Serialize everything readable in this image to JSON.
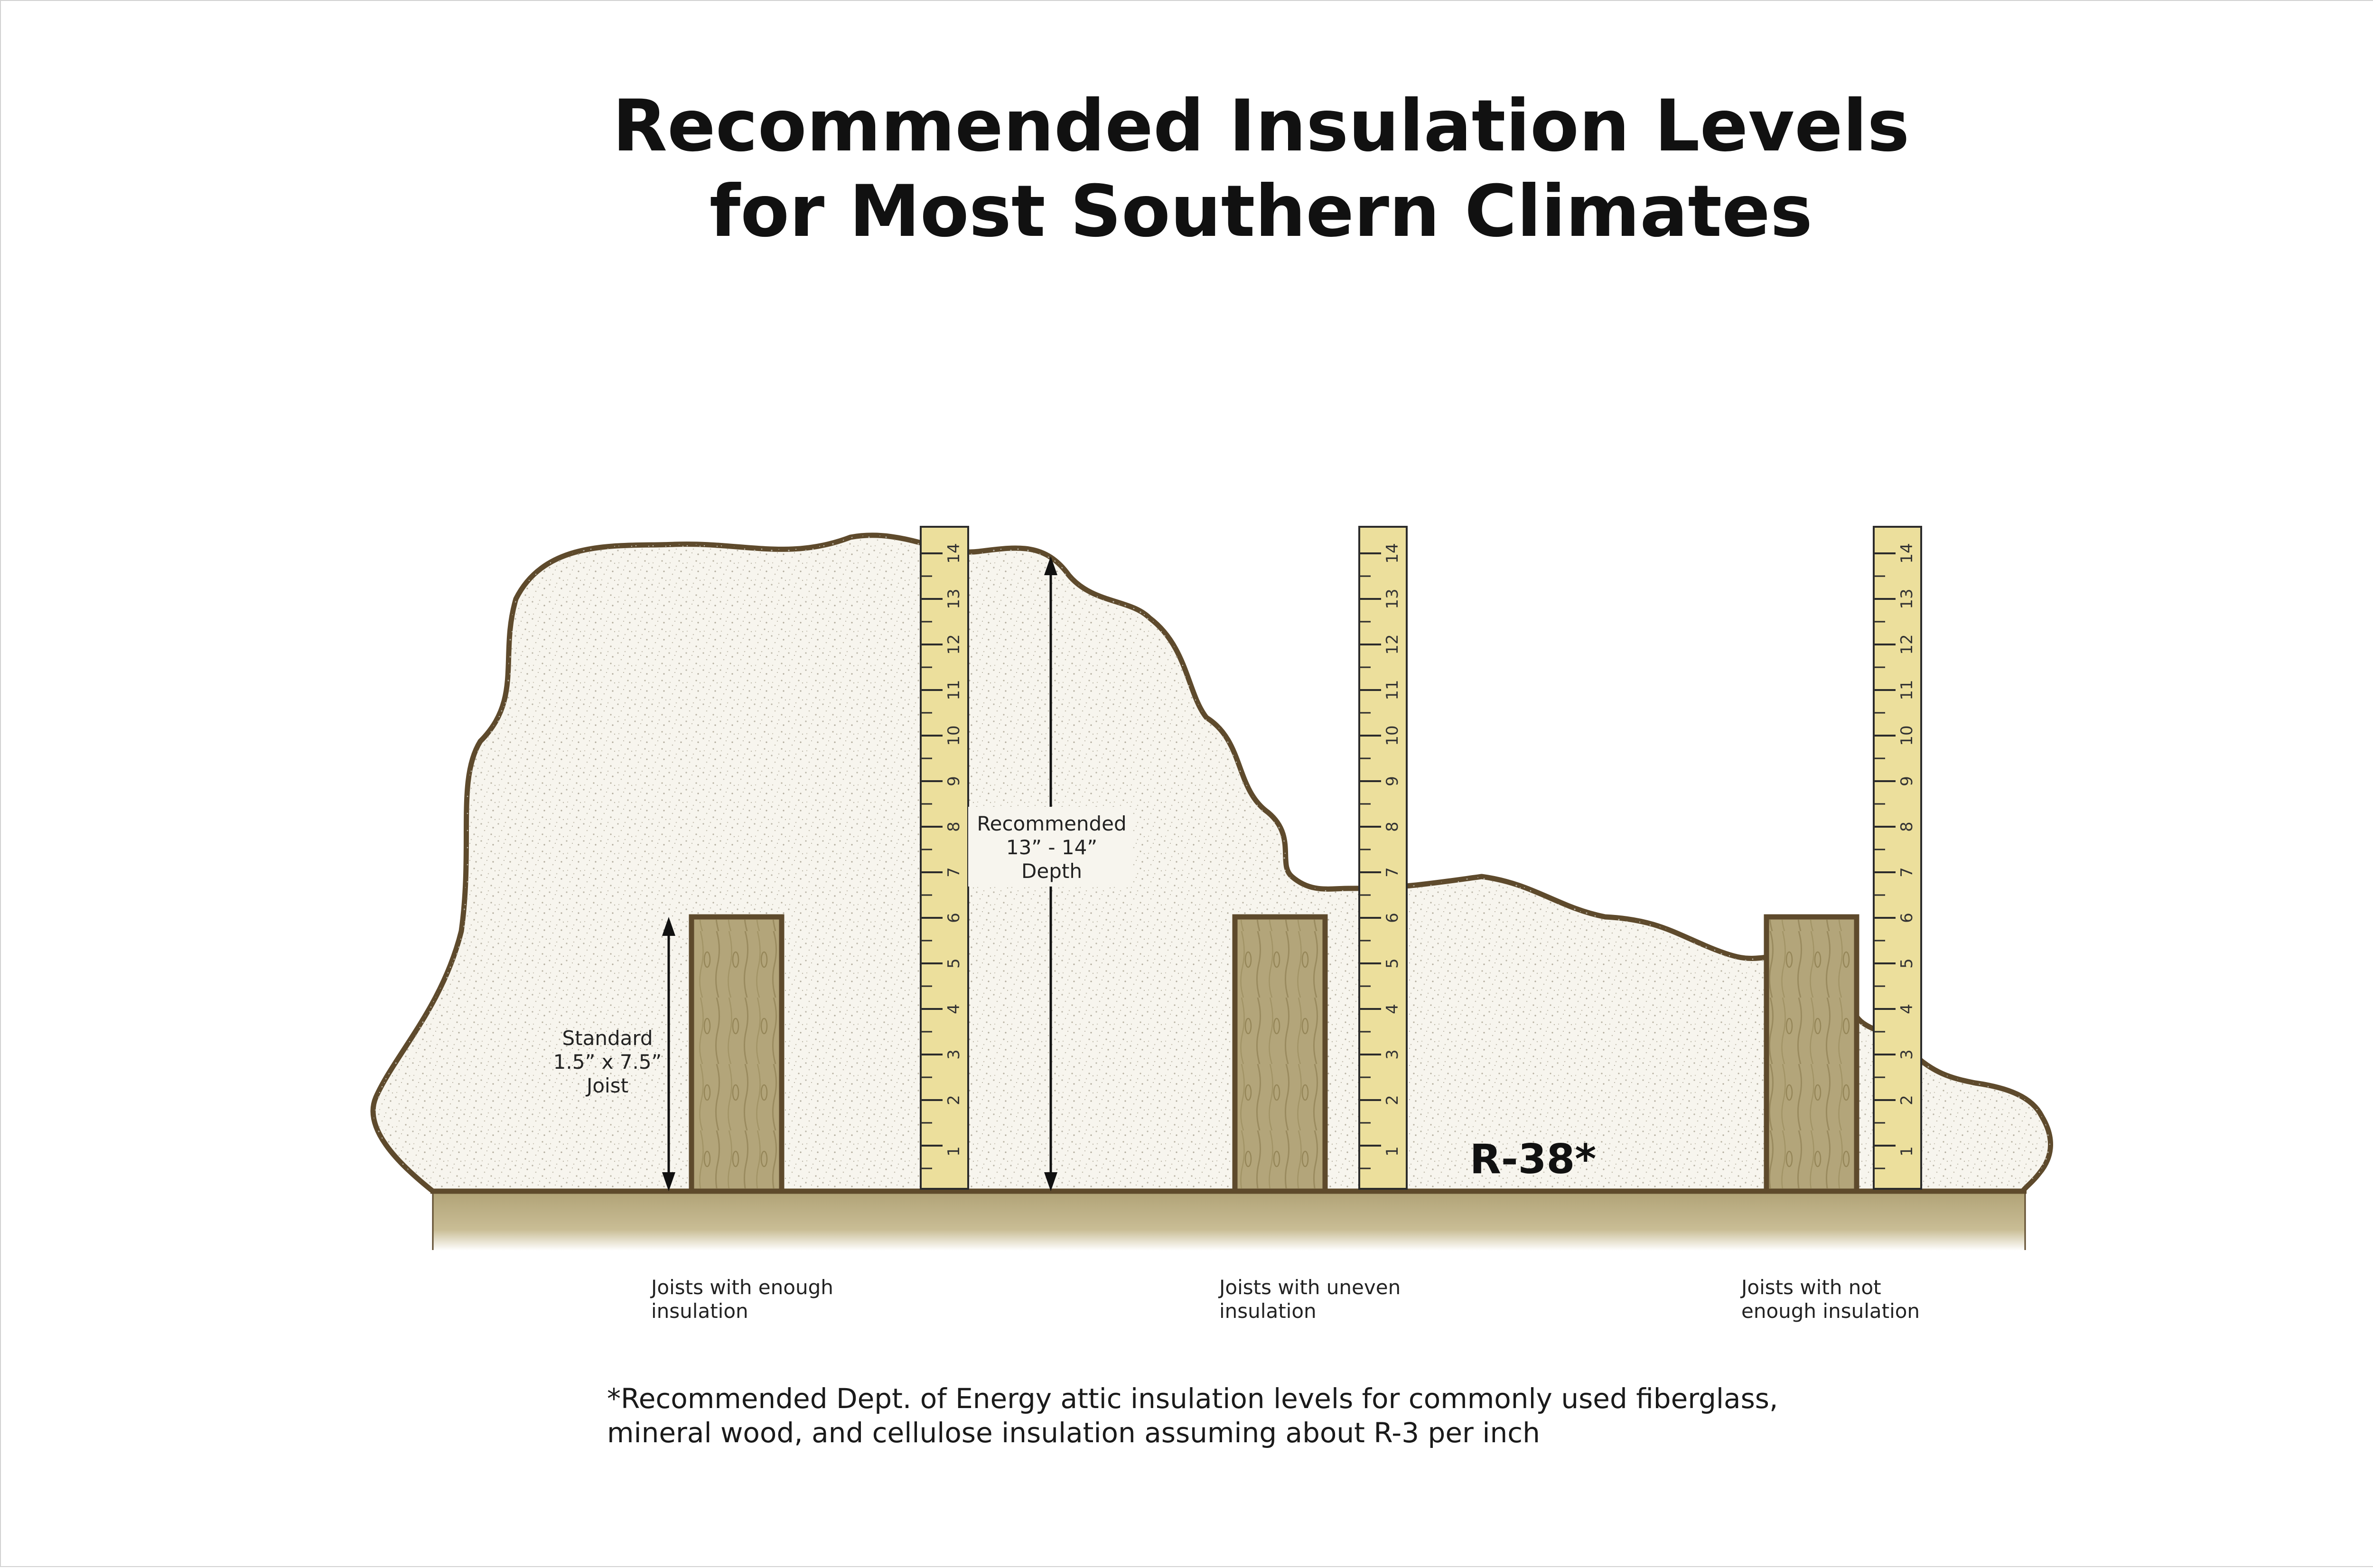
{
  "title": {
    "line1": "Recommended Insulation Levels",
    "line2": "for Most Southern Climates"
  },
  "annotations": {
    "recommended_depth": [
      "Recommended",
      "13” - 14”",
      "Depth"
    ],
    "standard_joist": [
      "Standard",
      "1.5” x 7.5”",
      "Joist"
    ],
    "rating": "R-38*"
  },
  "captions": {
    "enough": [
      "Joists with enough",
      "insulation"
    ],
    "uneven": [
      "Joists with uneven",
      "insulation"
    ],
    "not_enough": [
      "Joists with not",
      "enough insulation"
    ]
  },
  "footnote": [
    "*Recommended Dept. of Energy attic insulation levels for commonly used fiberglass,",
    "mineral wood, and cellulose insulation assuming about R-3 per inch"
  ],
  "rulers": {
    "count": 3,
    "marks": [
      "1",
      "2",
      "3",
      "4",
      "5",
      "6",
      "7",
      "8",
      "9",
      "10",
      "11",
      "12",
      "13",
      "14"
    ]
  },
  "colors": {
    "insulation_fill": "#f7f5ee",
    "outline": "#5e4a2c",
    "wood": "#b3a57a",
    "ruler": "#ecdf9c"
  }
}
